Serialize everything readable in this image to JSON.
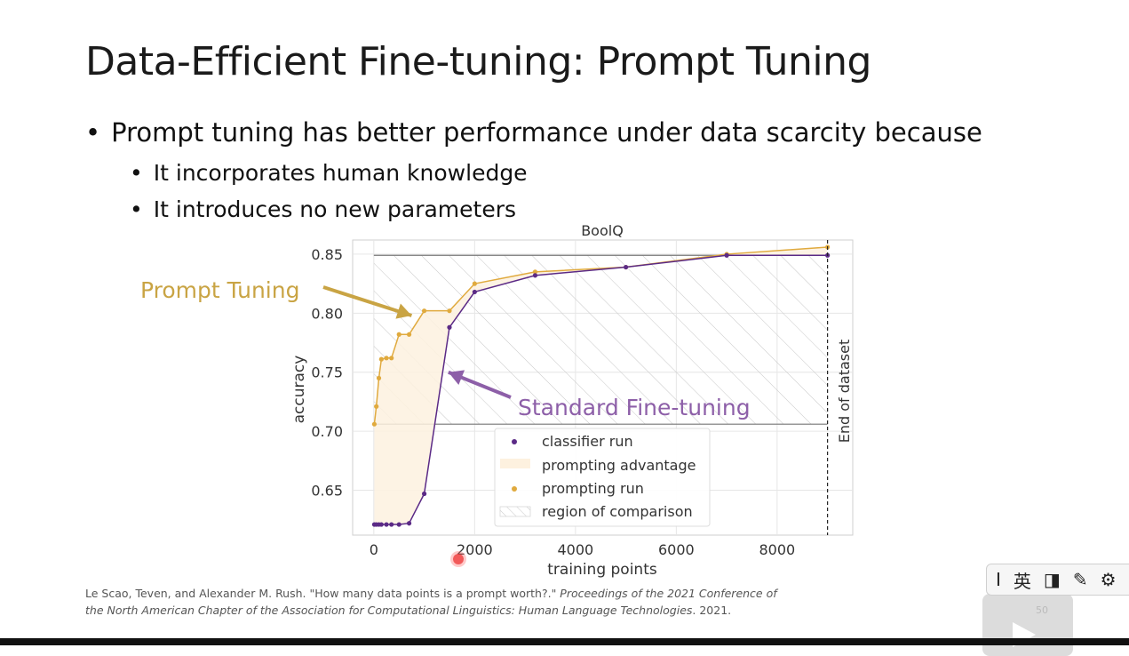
{
  "slide": {
    "title": "Data-Efficient Fine-tuning: Prompt Tuning",
    "bullets": [
      "Prompt tuning has better performance under data scarcity because",
      "It incorporates human knowledge",
      "It introduces no new parameters"
    ],
    "bullet_char": "•",
    "citation": {
      "text": "Le Scao, Teven, and Alexander M. Rush. \"How many data points is a prompt worth?.\" ",
      "italic": "Proceedings of the 2021 Conference of the North American Chapter of the Association for Computational Linguistics: Human Language Technologies",
      "tail": ". 2021."
    },
    "page_number": "50"
  },
  "toolbar": {
    "items": [
      "I",
      "英",
      "◨",
      "✎",
      "⚙"
    ]
  },
  "colors": {
    "classifier": "#5b2a86",
    "prompting": "#e0aa3e",
    "advantage_fill": "#fdf1df",
    "prompt_label": "#c9a444",
    "standard_label": "#8d5fa8"
  },
  "chart_data": {
    "type": "line",
    "title": "BoolQ",
    "xlabel": "training points",
    "ylabel": "accuracy",
    "xlim": [
      -420,
      9500
    ],
    "ylim": [
      0.612,
      0.862
    ],
    "xticks": [
      0,
      2000,
      4000,
      6000,
      8000
    ],
    "yticks": [
      0.65,
      0.7,
      0.75,
      0.8,
      0.85
    ],
    "xtick_labels": [
      "0",
      "2000",
      "4000",
      "6000",
      "8000"
    ],
    "ytick_labels": [
      "0.65",
      "0.70",
      "0.75",
      "0.80",
      "0.85"
    ],
    "series": [
      {
        "name": "classifier run",
        "x": [
          10,
          50,
          100,
          150,
          250,
          350,
          500,
          700,
          1000,
          1500,
          2000,
          3200,
          5000,
          7000,
          9000
        ],
        "y": [
          0.621,
          0.621,
          0.621,
          0.621,
          0.621,
          0.621,
          0.621,
          0.622,
          0.647,
          0.788,
          0.818,
          0.832,
          0.839,
          0.849,
          0.849
        ]
      },
      {
        "name": "prompting run",
        "x": [
          10,
          50,
          100,
          150,
          250,
          350,
          500,
          700,
          1000,
          1500,
          2000,
          3200,
          5000,
          7000,
          9000
        ],
        "y": [
          0.706,
          0.721,
          0.745,
          0.761,
          0.762,
          0.762,
          0.782,
          0.782,
          0.802,
          0.802,
          0.825,
          0.835,
          0.839,
          0.85,
          0.856
        ]
      }
    ],
    "region_of_comparison": {
      "x": [
        0,
        9000
      ],
      "y": [
        0.706,
        0.849
      ]
    },
    "end_of_dataset_x": 9000,
    "end_of_dataset_label": "End of dataset",
    "legend": {
      "position": "lower-center",
      "entries": [
        "classifier run",
        "prompting advantage",
        "prompting run",
        "region of comparison"
      ]
    },
    "annotations": [
      {
        "text": "Prompt Tuning",
        "arrow_to": [
          750,
          0.798
        ]
      },
      {
        "text": "Standard Fine-tuning",
        "arrow_to": [
          1480,
          0.75
        ]
      }
    ],
    "grid": true
  }
}
